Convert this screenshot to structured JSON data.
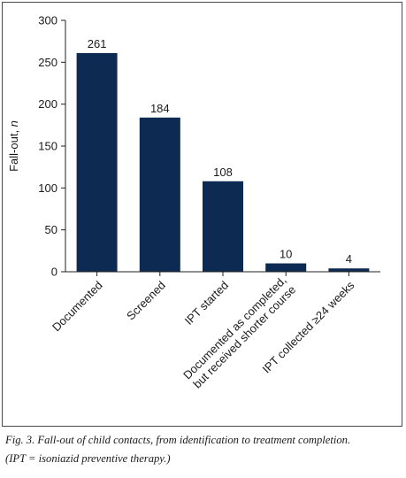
{
  "chart_data": {
    "type": "bar",
    "categories": [
      "Documented",
      "Screened",
      "IPT started",
      [
        "Documented as completed,",
        "but received shorter course"
      ],
      "IPT collected ≥24 weeks"
    ],
    "values": [
      261,
      184,
      108,
      10,
      4
    ],
    "data_labels": [
      "261",
      "184",
      "108",
      "10",
      "4"
    ],
    "ylabel_prefix": "Fall-out, ",
    "ylabel_italic": "n",
    "ylim": [
      0,
      300
    ],
    "yticks": [
      0,
      50,
      100,
      150,
      200,
      250,
      300
    ],
    "bar_color": "#0d2b52",
    "grid": false
  },
  "caption": {
    "line1": "Fig. 3. Fall-out of child contacts, from identification to treatment completion.",
    "line2": "(IPT = isoniazid preventive therapy.)"
  }
}
